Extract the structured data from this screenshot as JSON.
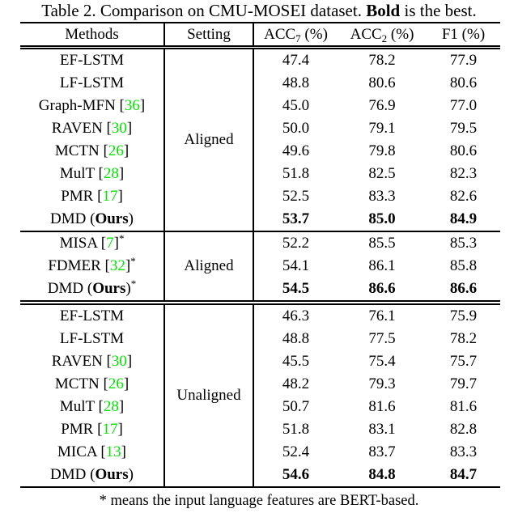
{
  "caption": {
    "prefix": "Table 2. Comparison on CMU-MOSEI dataset. ",
    "bold_word": "Bold",
    "suffix": " is the best."
  },
  "footnote": "* means the input language features are BERT-based.",
  "colors": {
    "citation_green": "#00E400",
    "text": "#000000",
    "background": "#ffffff"
  },
  "table": {
    "header": {
      "methods": "Methods",
      "setting": "Setting",
      "metrics": [
        {
          "base": "ACC",
          "sub": "7",
          "suffix": " (%)"
        },
        {
          "base": "ACC",
          "sub": "2",
          "suffix": " (%)"
        },
        {
          "base": "F1",
          "sub": "",
          "suffix": " (%)"
        }
      ]
    },
    "ours_label": "Ours",
    "star_symbol": "*",
    "blocks": [
      {
        "setting": "Aligned",
        "separator_after": "single",
        "rows": [
          {
            "method": "EF-LSTM",
            "cite": null,
            "star": false,
            "ours": false,
            "bold": false,
            "values": [
              "47.4",
              "78.2",
              "77.9"
            ]
          },
          {
            "method": "LF-LSTM",
            "cite": null,
            "star": false,
            "ours": false,
            "bold": false,
            "values": [
              "48.8",
              "80.6",
              "80.6"
            ]
          },
          {
            "method": "Graph-MFN",
            "cite": "36",
            "star": false,
            "ours": false,
            "bold": false,
            "values": [
              "45.0",
              "76.9",
              "77.0"
            ]
          },
          {
            "method": "RAVEN",
            "cite": "30",
            "star": false,
            "ours": false,
            "bold": false,
            "values": [
              "50.0",
              "79.1",
              "79.5"
            ]
          },
          {
            "method": "MCTN",
            "cite": "26",
            "star": false,
            "ours": false,
            "bold": false,
            "values": [
              "49.6",
              "79.8",
              "80.6"
            ]
          },
          {
            "method": "MulT",
            "cite": "28",
            "star": false,
            "ours": false,
            "bold": false,
            "values": [
              "51.8",
              "82.5",
              "82.3"
            ]
          },
          {
            "method": "PMR",
            "cite": "17",
            "star": false,
            "ours": false,
            "bold": false,
            "values": [
              "52.5",
              "83.3",
              "82.6"
            ]
          },
          {
            "method": "DMD",
            "cite": null,
            "star": false,
            "ours": true,
            "bold": true,
            "values": [
              "53.7",
              "85.0",
              "84.9"
            ]
          }
        ]
      },
      {
        "setting": "Aligned",
        "separator_after": "double",
        "rows": [
          {
            "method": "MISA",
            "cite": "7",
            "star": true,
            "ours": false,
            "bold": false,
            "values": [
              "52.2",
              "85.5",
              "85.3"
            ]
          },
          {
            "method": "FDMER",
            "cite": "32",
            "star": true,
            "ours": false,
            "bold": false,
            "values": [
              "54.1",
              "86.1",
              "85.8"
            ]
          },
          {
            "method": "DMD",
            "cite": null,
            "star": true,
            "ours": true,
            "bold": true,
            "values": [
              "54.5",
              "86.6",
              "86.6"
            ]
          }
        ]
      },
      {
        "setting": "Unaligned",
        "separator_after": null,
        "rows": [
          {
            "method": "EF-LSTM",
            "cite": null,
            "star": false,
            "ours": false,
            "bold": false,
            "values": [
              "46.3",
              "76.1",
              "75.9"
            ]
          },
          {
            "method": "LF-LSTM",
            "cite": null,
            "star": false,
            "ours": false,
            "bold": false,
            "values": [
              "48.8",
              "77.5",
              "78.2"
            ]
          },
          {
            "method": "RAVEN",
            "cite": "30",
            "star": false,
            "ours": false,
            "bold": false,
            "values": [
              "45.5",
              "75.4",
              "75.7"
            ]
          },
          {
            "method": "MCTN",
            "cite": "26",
            "star": false,
            "ours": false,
            "bold": false,
            "values": [
              "48.2",
              "79.3",
              "79.7"
            ]
          },
          {
            "method": "MulT",
            "cite": "28",
            "star": false,
            "ours": false,
            "bold": false,
            "values": [
              "50.7",
              "81.6",
              "81.6"
            ]
          },
          {
            "method": "PMR",
            "cite": "17",
            "star": false,
            "ours": false,
            "bold": false,
            "values": [
              "51.8",
              "83.1",
              "82.8"
            ]
          },
          {
            "method": "MICA",
            "cite": "13",
            "star": false,
            "ours": false,
            "bold": false,
            "values": [
              "52.4",
              "83.7",
              "83.3"
            ]
          },
          {
            "method": "DMD",
            "cite": null,
            "star": false,
            "ours": true,
            "bold": true,
            "values": [
              "54.6",
              "84.8",
              "84.7"
            ]
          }
        ]
      }
    ]
  }
}
